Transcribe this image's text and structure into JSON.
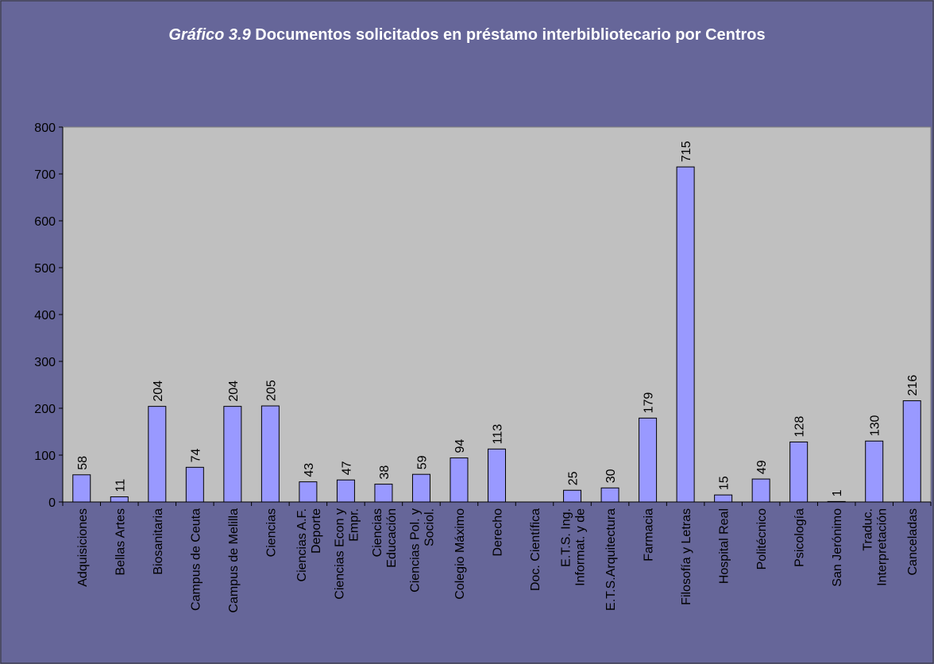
{
  "chart_data": {
    "type": "bar",
    "title_prefix": "Gráfico 3.9",
    "title": "Documentos solicitados en préstamo interbibliotecario por Centros",
    "categories": [
      "Adquisiciones",
      "Bellas Artes",
      "Biosanitaria",
      "Campus de Ceuta",
      "Campus de Melilla",
      "Ciencias",
      [
        "Ciencias A.F.",
        "Deporte"
      ],
      [
        "Ciencias Econ y",
        "Empr."
      ],
      [
        "Ciencias",
        "Educación"
      ],
      [
        "Ciencias Pol. y",
        "Sociol."
      ],
      "Colegio Máximo",
      "Derecho",
      "Doc. Científica",
      [
        "E.T.S. Ing.",
        "Informat. y de"
      ],
      "E.T.S.Arquitectura",
      "Farmacia",
      "Filosofía y Letras",
      "Hospital Real",
      "Politécnico",
      "Psicología",
      "San Jerónimo",
      [
        "Traduc.",
        "Interpretación"
      ],
      "Canceladas"
    ],
    "values": [
      58,
      11,
      204,
      74,
      204,
      205,
      43,
      47,
      38,
      59,
      94,
      113,
      null,
      25,
      30,
      179,
      715,
      15,
      49,
      128,
      1,
      130,
      216
    ],
    "color": "#9999ff",
    "ylim": [
      0,
      800
    ],
    "yticks": [
      0,
      100,
      200,
      300,
      400,
      500,
      600,
      700,
      800
    ]
  }
}
